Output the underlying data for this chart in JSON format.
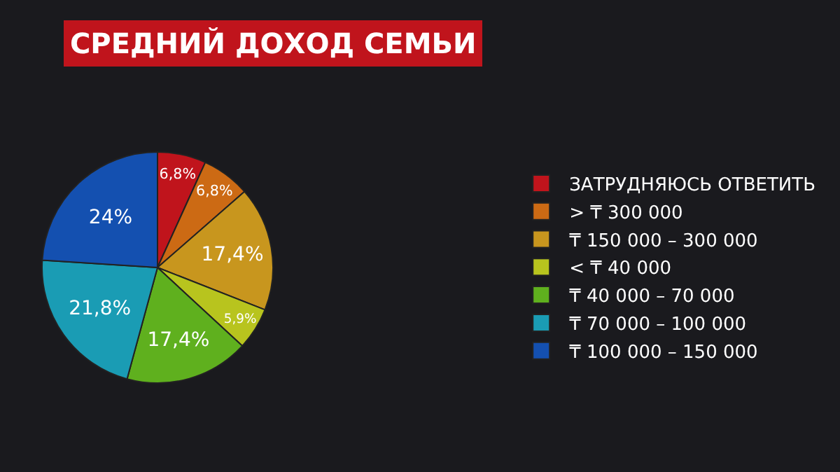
{
  "chart_data": {
    "type": "pie",
    "title": "СРЕДНИЙ ДОХОД СЕМЬИ",
    "categories": [
      "ЗАТРУДНЯЮСЬ ОТВЕТИТЬ",
      "> ₸ 300 000",
      "₸ 150 000 – 300 000",
      "< ₸ 40 000",
      "₸ 40 000 – 70 000",
      "₸ 70 000 – 100 000",
      "₸ 100 000 – 150 000"
    ],
    "values": [
      6.8,
      6.8,
      17.4,
      5.9,
      17.4,
      21.8,
      24
    ],
    "value_labels": [
      "6,8%",
      "6,8%",
      "17,4%",
      "5,9%",
      "17,4%",
      "21,8%",
      "24%"
    ],
    "colors": [
      "#c0141c",
      "#cc6a14",
      "#c8961e",
      "#b8c41e",
      "#5fb01e",
      "#1a9cb4",
      "#1450b0"
    ],
    "legend": "right"
  }
}
